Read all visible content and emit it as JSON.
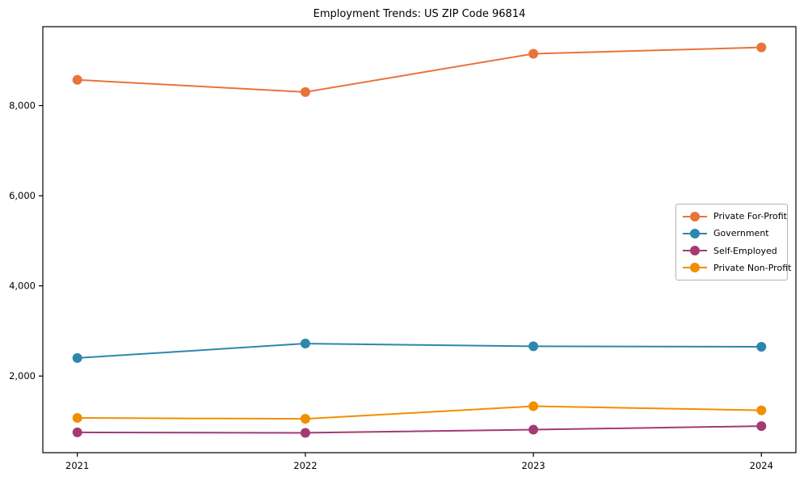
{
  "chart_data": {
    "type": "line",
    "title": "Employment Trends: US ZIP Code 96814",
    "xlabel": "",
    "ylabel": "",
    "x_categories": [
      "2021",
      "2022",
      "2023",
      "2024"
    ],
    "series": [
      {
        "name": "Private For-Profit",
        "color": "#E8743B",
        "values": [
          8570,
          8300,
          9150,
          9290
        ]
      },
      {
        "name": "Government",
        "color": "#2E86AB",
        "values": [
          2400,
          2720,
          2660,
          2650
        ]
      },
      {
        "name": "Self-Employed",
        "color": "#A23B72",
        "values": [
          750,
          740,
          810,
          890
        ]
      },
      {
        "name": "Private Non-Profit",
        "color": "#F18F01",
        "values": [
          1070,
          1050,
          1330,
          1240
        ]
      }
    ],
    "y_ticks": [
      {
        "value": 2000,
        "label": "2,000"
      },
      {
        "value": 4000,
        "label": "4,000"
      },
      {
        "value": 6000,
        "label": "6,000"
      },
      {
        "value": 8000,
        "label": "8,000"
      }
    ],
    "ylim": [
      300,
      9750
    ],
    "grid": false,
    "frame": true,
    "legend_position": "right-middle",
    "axis_color": "#000000",
    "background_color": "#ffffff",
    "marker": "circle",
    "marker_size": 12,
    "line_width": 2
  }
}
